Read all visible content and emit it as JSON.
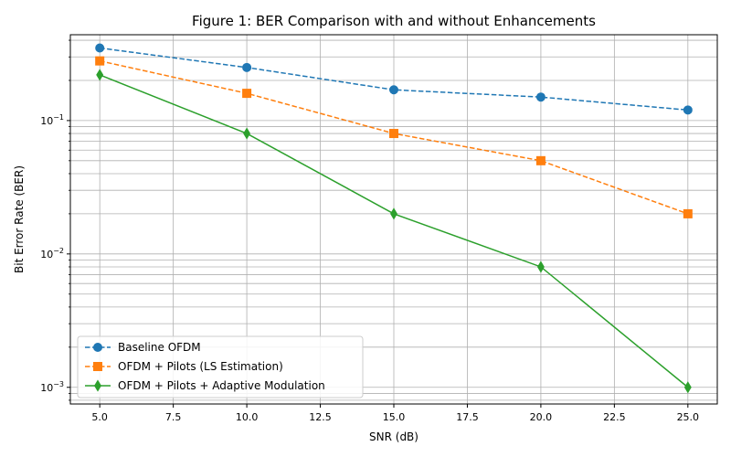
{
  "chart_data": {
    "type": "line",
    "title": "Figure 1: BER Comparison with and without Enhancements",
    "xlabel": "SNR (dB)",
    "ylabel": "Bit Error Rate (BER)",
    "x": [
      5,
      10,
      15,
      20,
      25
    ],
    "xlim": [
      4,
      26
    ],
    "xticks": [
      5.0,
      7.5,
      10.0,
      12.5,
      15.0,
      17.5,
      20.0,
      22.5,
      25.0
    ],
    "xtick_labels": [
      "5.0",
      "7.5",
      "10.0",
      "12.5",
      "15.0",
      "17.5",
      "20.0",
      "22.5",
      "25.0"
    ],
    "yscale": "log",
    "ylim": [
      0.00075,
      0.44
    ],
    "yticks": [
      0.001,
      0.01,
      0.1
    ],
    "ytick_labels": [
      [
        "10",
        "−3"
      ],
      [
        "10",
        "−2"
      ],
      [
        "10",
        "−1"
      ]
    ],
    "grid": "both (major and minor)",
    "legend_position": "lower-left",
    "series": [
      {
        "name": "Baseline OFDM",
        "values": [
          0.35,
          0.25,
          0.17,
          0.15,
          0.12
        ],
        "color": "#1f77b4",
        "linestyle": "dashed",
        "marker": "circle"
      },
      {
        "name": "OFDM + Pilots (LS Estimation)",
        "values": [
          0.28,
          0.16,
          0.08,
          0.05,
          0.02
        ],
        "color": "#ff7f0e",
        "linestyle": "dashed",
        "marker": "square"
      },
      {
        "name": "OFDM + Pilots + Adaptive Modulation",
        "values": [
          0.22,
          0.08,
          0.02,
          0.008,
          0.001
        ],
        "color": "#2ca02c",
        "linestyle": "solid",
        "marker": "diamond"
      }
    ]
  }
}
